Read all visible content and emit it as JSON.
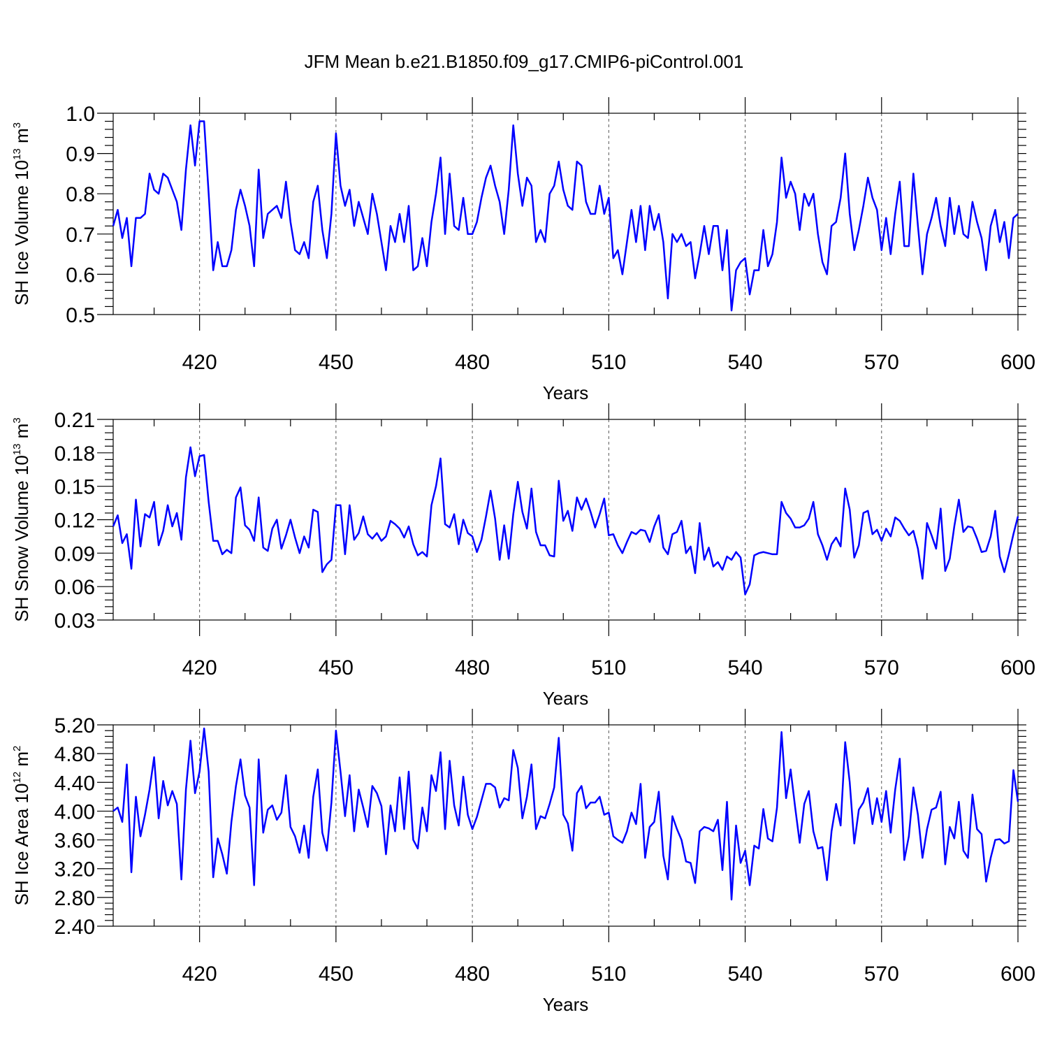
{
  "title": "JFM Mean b.e21.B1850.f09_g17.CMIP6-piControl.001",
  "colors": {
    "series": "#0000ff",
    "axis": "#000000",
    "grid": "#555555"
  },
  "x_tick_labels": [
    "420",
    "450",
    "480",
    "510",
    "540",
    "570",
    "600"
  ],
  "chart_data": [
    {
      "type": "line",
      "ylabel_text": "SH Ice Volume 10",
      "ylabel_exp": "13",
      "ylabel_unit": "m",
      "ylabel_unit_exp": "3",
      "xlabel": "Years",
      "xlim": [
        401,
        600
      ],
      "ylim": [
        0.5,
        1.0
      ],
      "y_tick_labels": [
        "0.5",
        "0.6",
        "0.7",
        "0.8",
        "0.9",
        "1.0"
      ],
      "y_tick_values": [
        0.5,
        0.6,
        0.7,
        0.8,
        0.9,
        1.0
      ],
      "x_start": 401,
      "values": [
        0.72,
        0.76,
        0.69,
        0.74,
        0.62,
        0.74,
        0.74,
        0.75,
        0.85,
        0.81,
        0.8,
        0.85,
        0.84,
        0.81,
        0.78,
        0.71,
        0.86,
        0.97,
        0.87,
        0.98,
        0.98,
        0.8,
        0.61,
        0.68,
        0.62,
        0.62,
        0.66,
        0.76,
        0.81,
        0.77,
        0.72,
        0.62,
        0.86,
        0.69,
        0.75,
        0.76,
        0.77,
        0.74,
        0.83,
        0.73,
        0.66,
        0.65,
        0.68,
        0.64,
        0.78,
        0.82,
        0.71,
        0.64,
        0.75,
        0.95,
        0.82,
        0.77,
        0.81,
        0.72,
        0.78,
        0.74,
        0.7,
        0.8,
        0.75,
        0.68,
        0.61,
        0.72,
        0.68,
        0.75,
        0.68,
        0.77,
        0.61,
        0.62,
        0.69,
        0.62,
        0.73,
        0.8,
        0.89,
        0.7,
        0.85,
        0.72,
        0.71,
        0.79,
        0.7,
        0.7,
        0.73,
        0.79,
        0.84,
        0.87,
        0.82,
        0.78,
        0.7,
        0.81,
        0.97,
        0.85,
        0.77,
        0.84,
        0.82,
        0.68,
        0.71,
        0.68,
        0.8,
        0.82,
        0.88,
        0.81,
        0.77,
        0.76,
        0.88,
        0.87,
        0.78,
        0.75,
        0.75,
        0.82,
        0.75,
        0.79,
        0.64,
        0.66,
        0.6,
        0.68,
        0.76,
        0.68,
        0.77,
        0.66,
        0.77,
        0.71,
        0.75,
        0.68,
        0.54,
        0.7,
        0.68,
        0.7,
        0.67,
        0.68,
        0.59,
        0.65,
        0.72,
        0.65,
        0.72,
        0.72,
        0.61,
        0.71,
        0.51,
        0.61,
        0.63,
        0.64,
        0.55,
        0.61,
        0.61,
        0.71,
        0.62,
        0.65,
        0.73,
        0.89,
        0.79,
        0.83,
        0.8,
        0.71,
        0.8,
        0.77,
        0.8,
        0.7,
        0.63,
        0.6,
        0.72,
        0.73,
        0.79,
        0.9,
        0.75,
        0.66,
        0.71,
        0.77,
        0.84,
        0.79,
        0.76,
        0.66,
        0.74,
        0.65,
        0.75,
        0.83,
        0.67,
        0.67,
        0.85,
        0.72,
        0.6,
        0.7,
        0.74,
        0.79,
        0.72,
        0.67,
        0.79,
        0.7,
        0.77,
        0.7,
        0.69,
        0.78,
        0.73,
        0.69,
        0.61,
        0.72,
        0.76,
        0.68,
        0.73,
        0.64,
        0.74,
        0.75
      ]
    },
    {
      "type": "line",
      "ylabel_text": "SH Snow Volume 10",
      "ylabel_exp": "13",
      "ylabel_unit": "m",
      "ylabel_unit_exp": "3",
      "xlabel": "Years",
      "xlim": [
        401,
        600
      ],
      "ylim": [
        0.03,
        0.21
      ],
      "y_tick_labels": [
        "0.03",
        "0.06",
        "0.09",
        "0.12",
        "0.15",
        "0.18",
        "0.21"
      ],
      "y_tick_values": [
        0.03,
        0.06,
        0.09,
        0.12,
        0.15,
        0.18,
        0.21
      ],
      "x_start": 401,
      "values": [
        0.114,
        0.124,
        0.099,
        0.107,
        0.076,
        0.138,
        0.096,
        0.125,
        0.122,
        0.136,
        0.097,
        0.11,
        0.133,
        0.114,
        0.126,
        0.102,
        0.158,
        0.185,
        0.159,
        0.177,
        0.178,
        0.136,
        0.101,
        0.101,
        0.089,
        0.093,
        0.09,
        0.14,
        0.149,
        0.115,
        0.111,
        0.101,
        0.14,
        0.095,
        0.092,
        0.112,
        0.12,
        0.094,
        0.106,
        0.12,
        0.104,
        0.09,
        0.105,
        0.095,
        0.129,
        0.127,
        0.073,
        0.08,
        0.084,
        0.133,
        0.133,
        0.089,
        0.133,
        0.102,
        0.108,
        0.123,
        0.107,
        0.103,
        0.108,
        0.101,
        0.105,
        0.119,
        0.116,
        0.112,
        0.104,
        0.114,
        0.098,
        0.088,
        0.091,
        0.087,
        0.133,
        0.15,
        0.175,
        0.116,
        0.113,
        0.125,
        0.098,
        0.12,
        0.108,
        0.105,
        0.091,
        0.102,
        0.123,
        0.146,
        0.121,
        0.084,
        0.115,
        0.085,
        0.125,
        0.154,
        0.127,
        0.112,
        0.148,
        0.109,
        0.097,
        0.097,
        0.088,
        0.087,
        0.155,
        0.119,
        0.128,
        0.11,
        0.14,
        0.129,
        0.139,
        0.127,
        0.113,
        0.125,
        0.139,
        0.106,
        0.107,
        0.097,
        0.09,
        0.1,
        0.109,
        0.107,
        0.111,
        0.11,
        0.1,
        0.114,
        0.124,
        0.095,
        0.089,
        0.107,
        0.109,
        0.119,
        0.09,
        0.096,
        0.072,
        0.117,
        0.084,
        0.095,
        0.078,
        0.082,
        0.075,
        0.087,
        0.084,
        0.091,
        0.086,
        0.053,
        0.062,
        0.088,
        0.09,
        0.091,
        0.09,
        0.089,
        0.089,
        0.136,
        0.126,
        0.121,
        0.113,
        0.113,
        0.115,
        0.121,
        0.136,
        0.107,
        0.097,
        0.084,
        0.098,
        0.104,
        0.096,
        0.148,
        0.129,
        0.086,
        0.097,
        0.126,
        0.128,
        0.107,
        0.111,
        0.101,
        0.112,
        0.105,
        0.122,
        0.119,
        0.112,
        0.106,
        0.11,
        0.094,
        0.067,
        0.117,
        0.106,
        0.094,
        0.13,
        0.074,
        0.085,
        0.114,
        0.138,
        0.109,
        0.114,
        0.113,
        0.103,
        0.091,
        0.092,
        0.105,
        0.128,
        0.087,
        0.073,
        0.089,
        0.107,
        0.123
      ]
    },
    {
      "type": "line",
      "ylabel_text": "SH Ice Area 10",
      "ylabel_exp": "12",
      "ylabel_unit": "m",
      "ylabel_unit_exp": "2",
      "xlabel": "Years",
      "xlim": [
        401,
        600
      ],
      "ylim": [
        2.4,
        5.2
      ],
      "y_tick_labels": [
        "2.40",
        "2.80",
        "3.20",
        "3.60",
        "4.00",
        "4.40",
        "4.80",
        "5.20"
      ],
      "y_tick_values": [
        2.4,
        2.8,
        3.2,
        3.6,
        4.0,
        4.4,
        4.8,
        5.2
      ],
      "x_start": 401,
      "values": [
        4.0,
        4.05,
        3.85,
        4.65,
        3.15,
        4.2,
        3.65,
        3.95,
        4.3,
        4.75,
        3.9,
        4.42,
        4.08,
        4.28,
        4.1,
        3.05,
        4.3,
        4.98,
        4.25,
        4.55,
        5.15,
        4.55,
        3.08,
        3.62,
        3.4,
        3.13,
        3.85,
        4.35,
        4.72,
        4.22,
        4.05,
        2.97,
        4.72,
        3.7,
        4.02,
        4.08,
        3.88,
        3.98,
        4.5,
        3.78,
        3.65,
        3.42,
        3.8,
        3.35,
        4.2,
        4.58,
        3.7,
        3.45,
        4.12,
        5.12,
        4.55,
        3.93,
        4.5,
        3.72,
        4.3,
        4.05,
        3.78,
        4.35,
        4.25,
        4.07,
        3.4,
        4.08,
        3.72,
        4.47,
        3.75,
        4.55,
        3.6,
        3.48,
        4.05,
        3.72,
        4.5,
        4.28,
        4.82,
        3.75,
        4.7,
        4.08,
        3.8,
        4.48,
        3.95,
        3.75,
        3.92,
        4.15,
        4.38,
        4.38,
        4.33,
        4.05,
        4.18,
        4.15,
        4.85,
        4.6,
        3.9,
        4.2,
        4.65,
        3.75,
        3.93,
        3.9,
        4.1,
        4.33,
        5.02,
        3.95,
        3.83,
        3.45,
        4.25,
        4.35,
        4.04,
        4.12,
        4.12,
        4.2,
        3.95,
        3.98,
        3.65,
        3.6,
        3.56,
        3.72,
        3.98,
        3.82,
        4.38,
        3.35,
        3.78,
        3.85,
        4.27,
        3.38,
        3.05,
        3.93,
        3.75,
        3.6,
        3.3,
        3.28,
        3.0,
        3.72,
        3.78,
        3.76,
        3.72,
        3.88,
        3.18,
        4.13,
        2.77,
        3.8,
        3.28,
        3.45,
        2.97,
        3.52,
        3.48,
        4.03,
        3.62,
        3.58,
        4.05,
        5.1,
        4.18,
        4.58,
        4.05,
        3.56,
        4.1,
        4.28,
        3.72,
        3.48,
        3.5,
        3.04,
        3.72,
        4.1,
        3.8,
        4.96,
        4.4,
        3.55,
        4.02,
        4.12,
        4.32,
        3.82,
        4.18,
        3.85,
        4.28,
        3.7,
        4.3,
        4.73,
        3.32,
        3.65,
        4.33,
        3.95,
        3.35,
        3.75,
        4.02,
        4.05,
        4.27,
        3.26,
        3.78,
        3.62,
        4.13,
        3.45,
        3.35,
        4.23,
        3.75,
        3.68,
        3.02,
        3.35,
        3.6,
        3.61,
        3.55,
        3.58,
        4.57,
        4.13
      ]
    }
  ]
}
